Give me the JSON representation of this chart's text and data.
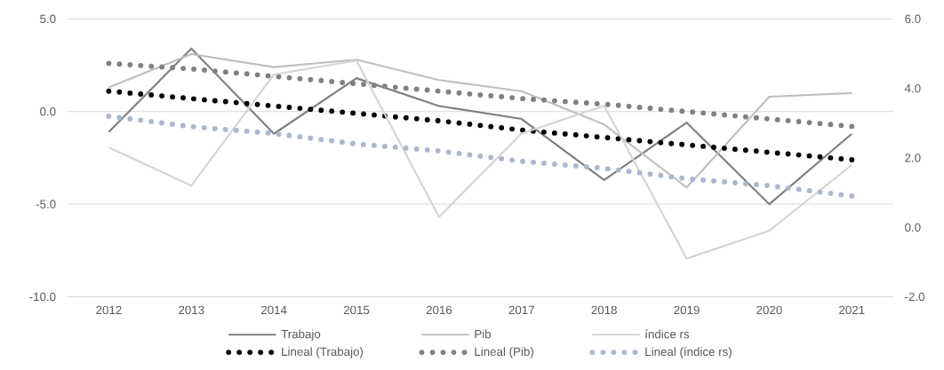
{
  "chart_data": {
    "type": "line",
    "categories": [
      "2012",
      "2013",
      "2014",
      "2015",
      "2016",
      "2017",
      "2018",
      "2019",
      "2020",
      "2021"
    ],
    "series": [
      {
        "name": "Trabajo",
        "color": "#7f7f7f",
        "values": [
          -1.1,
          3.4,
          -1.2,
          1.8,
          0.3,
          -0.4,
          -3.7,
          -0.6,
          -5.0,
          -1.2
        ]
      },
      {
        "name": "Pib",
        "color": "#bfbfbf",
        "values": [
          1.3,
          3.1,
          2.4,
          2.8,
          1.7,
          1.1,
          -0.7,
          -4.1,
          0.8,
          1.0
        ]
      },
      {
        "name": "índice rs",
        "color": "#d4d4d4",
        "axis": "y2",
        "values": [
          2.3,
          1.2,
          4.4,
          4.8,
          0.3,
          2.7,
          3.5,
          -0.9,
          -0.1,
          1.8
        ]
      },
      {
        "name": "Lineal (Trabajo)",
        "color": "#000000",
        "line_style": "dotted",
        "values": [
          1.1,
          0.7,
          0.3,
          -0.1,
          -0.5,
          -1.0,
          -1.4,
          -1.8,
          -2.2,
          -2.6
        ]
      },
      {
        "name": "Lineal (Pib)",
        "color": "#808080",
        "line_style": "dotted",
        "values": [
          2.6,
          2.3,
          1.9,
          1.5,
          1.1,
          0.7,
          0.4,
          0.0,
          -0.4,
          -0.8
        ]
      },
      {
        "name": "Lineal (índice rs)",
        "color": "#a9b8d0",
        "line_style": "dotted",
        "axis": "y2",
        "values": [
          3.2,
          2.9,
          2.7,
          2.4,
          2.2,
          1.9,
          1.7,
          1.4,
          1.2,
          0.9
        ]
      }
    ],
    "ylim": [
      -10,
      5
    ],
    "yticks": [
      {
        "value": -10,
        "label": "-10.0"
      },
      {
        "value": -5,
        "label": "-5.0"
      },
      {
        "value": 0,
        "label": "0.0"
      },
      {
        "value": 5,
        "label": "5.0"
      }
    ],
    "y2lim": [
      -2,
      6
    ],
    "y2ticks": [
      {
        "value": -2,
        "label": "-2.0"
      },
      {
        "value": 0,
        "label": "0.0"
      },
      {
        "value": 2,
        "label": "2.0"
      },
      {
        "value": 4,
        "label": "4.0"
      },
      {
        "value": 6,
        "label": "6.0"
      }
    ],
    "grid": "y",
    "legend": "bottom"
  }
}
